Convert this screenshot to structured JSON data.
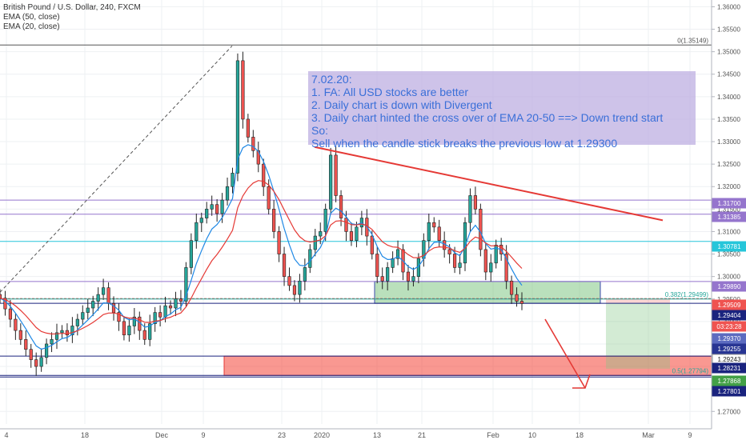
{
  "chart_data": {
    "type": "candlestick",
    "title": "British Pound / U.S. Dollar, 240, FXCM",
    "indicators": [
      {
        "name": "EMA (50, close)",
        "color": "#e53935"
      },
      {
        "name": "EMA (20, close)",
        "color": "#1e88e5"
      }
    ],
    "x_tick_labels": [
      "4",
      "18",
      "Dec",
      "9",
      "23",
      "2020",
      "13",
      "21",
      "Feb",
      "10",
      "18",
      "Mar",
      "9"
    ],
    "y_tick_labels": [
      "1.36000",
      "1.35500",
      "1.35000",
      "1.34500",
      "1.34000",
      "1.33500",
      "1.33000",
      "1.32500",
      "1.32000",
      "1.31500",
      "1.31000",
      "1.30500",
      "1.30000",
      "1.29500",
      "1.29000",
      "1.28500",
      "1.28000",
      "1.27500",
      "1.27000"
    ],
    "ylim": [
      1.2672,
      1.3615
    ],
    "price_levels": [
      {
        "label": "1.31700",
        "value": 1.317,
        "color": "#9575cd"
      },
      {
        "label": "1.31385",
        "value": 1.31385,
        "color": "#9575cd"
      },
      {
        "label": "1.30781",
        "value": 1.30781,
        "color": "#26c6da"
      },
      {
        "label": "1.29890",
        "value": 1.2989,
        "color": "#9575cd"
      },
      {
        "label": "1.29509",
        "value": 1.29509,
        "color": "#ef5350"
      },
      {
        "label": "1.29404",
        "value": 1.29404,
        "color": "#1a237e"
      },
      {
        "label": "03:23:28",
        "value": 1.293,
        "color": "#ef5350"
      },
      {
        "label": "1.29370",
        "value": 1.292,
        "color": "#5c6bc0"
      },
      {
        "label": "1.29255",
        "value": 1.2909,
        "color": "#283593"
      },
      {
        "label": "1.29243",
        "value": 1.2898,
        "color": "#ffffff"
      },
      {
        "label": "1.28231",
        "value": 1.28231,
        "color": "#1a237e"
      },
      {
        "label": "1.27868",
        "value": 1.27868,
        "color": "#43a047"
      },
      {
        "label": "1.27801",
        "value": 1.27801,
        "color": "#1a237e"
      }
    ],
    "fib_labels": [
      {
        "label": "0(1.35149)",
        "value": 1.35149
      },
      {
        "label": "0.382(1.29499)",
        "value": 1.29499
      },
      {
        "label": "0.5(1.27794)",
        "value": 1.27794
      }
    ],
    "annotation": {
      "lines": [
        "7.02.20:",
        "1. FA: All USD stocks are better",
        "2. Daily chart is down with Divergent",
        "3. Daily chart hinted the cross over of EMA 20-50 ==> Down trend start",
        "So:",
        "Sell when the candle stick breaks the previous low at 1.29300"
      ]
    },
    "close_series": [
      1.2952,
      1.2928,
      1.2905,
      1.288,
      1.286,
      1.2838,
      1.2815,
      1.28,
      1.282,
      1.285,
      1.286,
      1.2875,
      1.288,
      1.287,
      1.289,
      1.2905,
      1.292,
      1.293,
      1.2945,
      1.296,
      1.2975,
      1.294,
      1.292,
      1.29,
      1.287,
      1.289,
      1.291,
      1.288,
      1.286,
      1.2895,
      1.292,
      1.291,
      1.2935,
      1.293,
      1.295,
      1.2945,
      1.302,
      1.308,
      1.312,
      1.313,
      1.315,
      1.316,
      1.314,
      1.317,
      1.32,
      1.323,
      1.348,
      1.335,
      1.331,
      1.328,
      1.325,
      1.32,
      1.315,
      1.31,
      1.305,
      1.3,
      1.298,
      1.296,
      1.299,
      1.302,
      1.306,
      1.309,
      1.31,
      1.315,
      1.327,
      1.318,
      1.313,
      1.31,
      1.308,
      1.311,
      1.313,
      1.309,
      1.305,
      1.3,
      1.299,
      1.302,
      1.304,
      1.306,
      1.301,
      1.299,
      1.3,
      1.304,
      1.308,
      1.312,
      1.311,
      1.308,
      1.306,
      1.305,
      1.302,
      1.303,
      1.312,
      1.318,
      1.315,
      1.306,
      1.301,
      1.303,
      1.307,
      1.305,
      1.299,
      1.296,
      1.2945,
      1.294
    ]
  }
}
